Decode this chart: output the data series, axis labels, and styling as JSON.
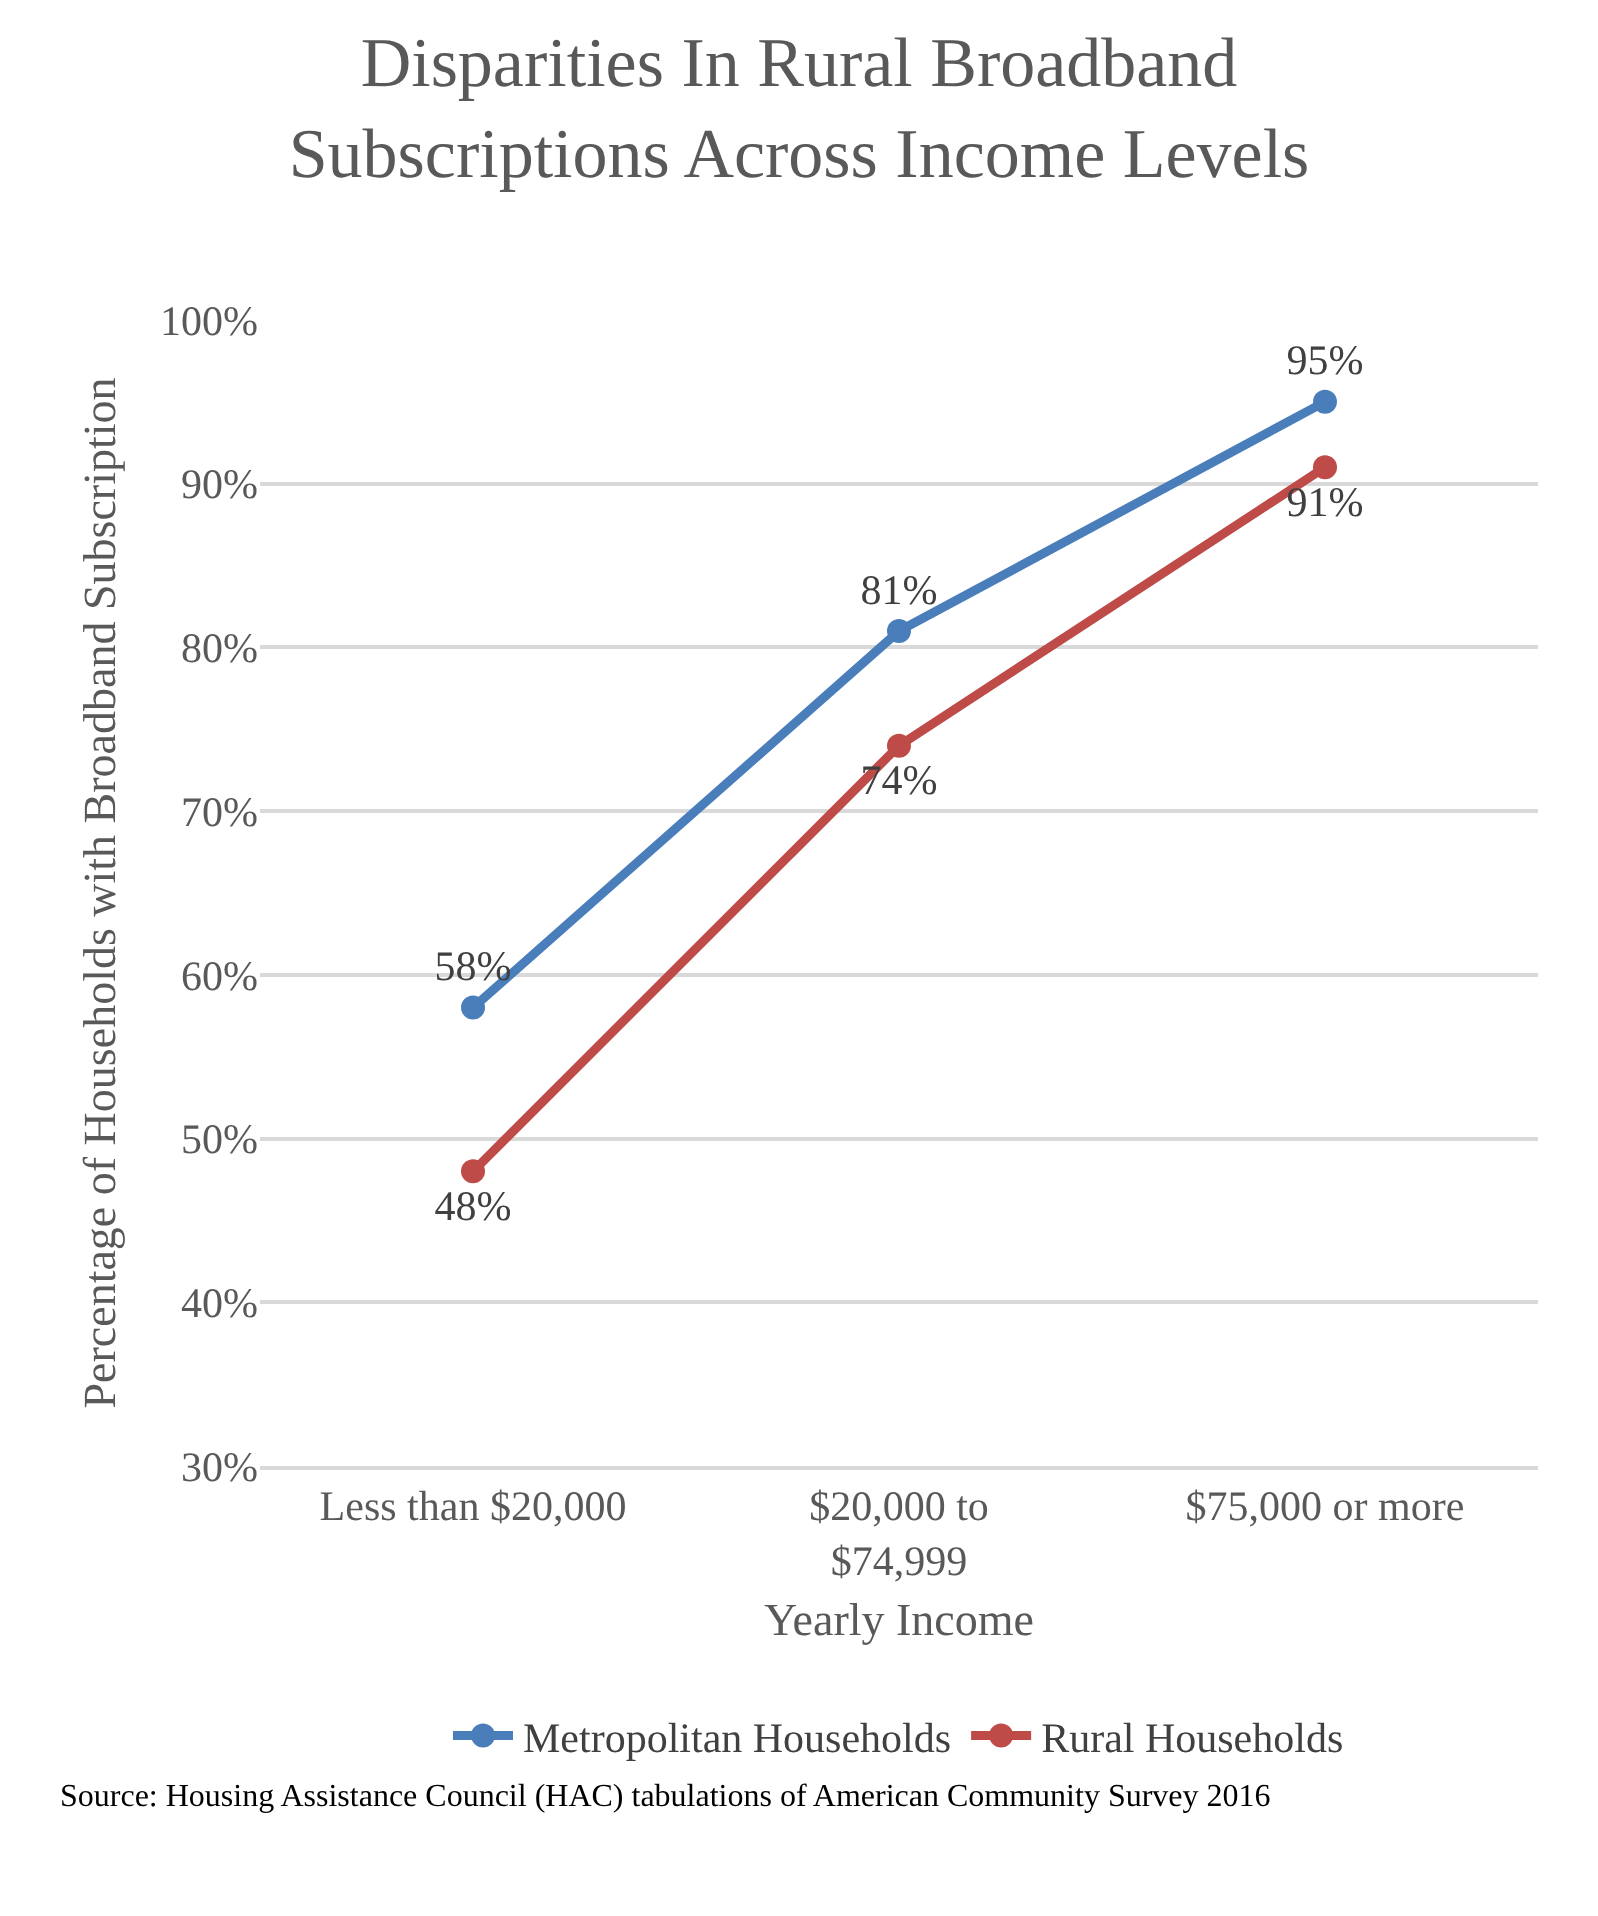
{
  "chart_data": {
    "type": "line",
    "title": "Disparities In Rural Broadband Subscriptions Across Income Levels",
    "xlabel": "Yearly Income",
    "ylabel": "Percentage of Households with Broadband Subscription",
    "categories": [
      "Less than $20,000",
      "$20,000 to $74,999",
      "$75,000 or more"
    ],
    "series": [
      {
        "name": "Metropolitan Households",
        "color": "#4a7ebb",
        "values": [
          58,
          81,
          95
        ],
        "value_labels": [
          "58%",
          "81%",
          "95%"
        ]
      },
      {
        "name": "Rural Households",
        "color": "#be4b48",
        "values": [
          48,
          74,
          91
        ],
        "value_labels": [
          "48%",
          "74%",
          "91%"
        ]
      }
    ],
    "ylim": [
      30,
      100
    ],
    "yticks": [
      {
        "value": 30,
        "label": "30%"
      },
      {
        "value": 40,
        "label": "40%"
      },
      {
        "value": 50,
        "label": "50%"
      },
      {
        "value": 60,
        "label": "60%"
      },
      {
        "value": 70,
        "label": "70%"
      },
      {
        "value": 80,
        "label": "80%"
      },
      {
        "value": 90,
        "label": "90%"
      },
      {
        "value": 100,
        "label": "100%"
      }
    ],
    "grid": "y",
    "legend": "bottom",
    "marker": "circle",
    "line_style": "solid",
    "annotations": [
      "Source: Housing Assistance Council (HAC) tabulations of American Community Survey 2016"
    ]
  }
}
